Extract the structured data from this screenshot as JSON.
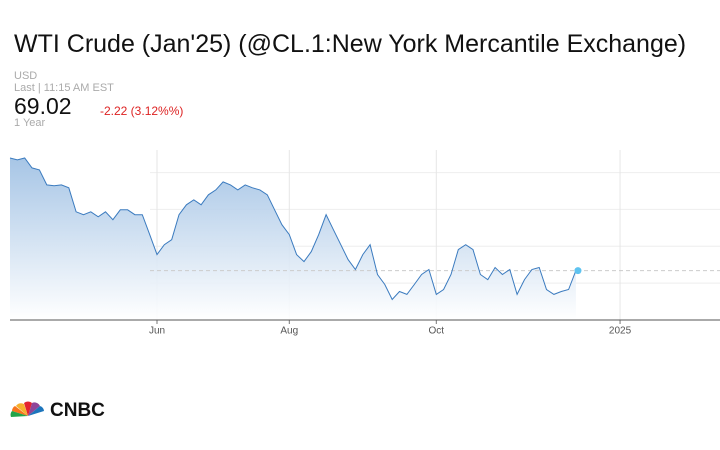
{
  "chart_data": {
    "type": "line",
    "title": "WTI Crude (Jan'25) (@CL.1:New York Mercantile Exchange)",
    "currency": "USD",
    "last_label": "Last | 11:15 AM EST",
    "price": 69.02,
    "change": "-2.22 (3.12%%)",
    "period": "1 Year",
    "logo": "CNBC",
    "color": "#3b7bbf",
    "ylim": [
      65,
      79
    ],
    "ygrid": [
      68,
      71,
      74,
      77
    ],
    "categories": [
      null,
      null,
      null,
      null,
      null,
      null,
      null,
      null,
      null,
      null,
      null,
      null,
      null,
      null,
      null,
      null,
      null,
      null,
      null,
      null,
      "Jun",
      null,
      null,
      null,
      null,
      null,
      null,
      null,
      null,
      null,
      null,
      null,
      null,
      null,
      null,
      null,
      null,
      null,
      "Aug",
      null,
      null,
      null,
      null,
      null,
      null,
      null,
      null,
      null,
      null,
      null,
      null,
      null,
      null,
      null,
      null,
      null,
      null,
      null,
      "Oct",
      null,
      null,
      null,
      null,
      null,
      null,
      null,
      null,
      null,
      null,
      null,
      null,
      null,
      null,
      null,
      null,
      null,
      null,
      null,
      null,
      null,
      null,
      null,
      null,
      "2025",
      null,
      null,
      null,
      null,
      null,
      null,
      null,
      null,
      null,
      null,
      null,
      null,
      null
    ],
    "values": [
      78.19,
      78.03,
      78.19,
      77.38,
      77.22,
      76.0,
      75.92,
      76.0,
      75.76,
      73.81,
      73.57,
      73.81,
      73.4,
      73.81,
      73.16,
      73.97,
      73.97,
      73.57,
      73.57,
      71.95,
      70.32,
      71.13,
      71.54,
      73.57,
      74.38,
      74.78,
      74.38,
      75.19,
      75.59,
      76.24,
      76.0,
      75.59,
      76.0,
      75.76,
      75.59,
      75.19,
      73.97,
      72.76,
      71.95,
      70.32,
      69.75,
      70.57,
      71.95,
      73.57,
      72.35,
      71.13,
      69.92,
      69.11,
      70.32,
      71.13,
      68.7,
      67.89,
      66.67,
      67.32,
      67.08,
      67.89,
      68.7,
      69.11,
      67.08,
      67.48,
      68.7,
      70.73,
      71.13,
      70.73,
      68.7,
      68.29,
      69.27,
      68.7,
      69.11,
      67.08,
      68.29,
      69.11,
      69.27,
      67.48,
      67.08,
      67.32,
      67.48,
      69.02,
      null,
      null,
      null,
      null,
      null,
      null,
      null,
      null,
      null,
      null,
      null,
      null,
      null,
      null,
      null,
      null,
      null,
      null,
      null
    ]
  }
}
